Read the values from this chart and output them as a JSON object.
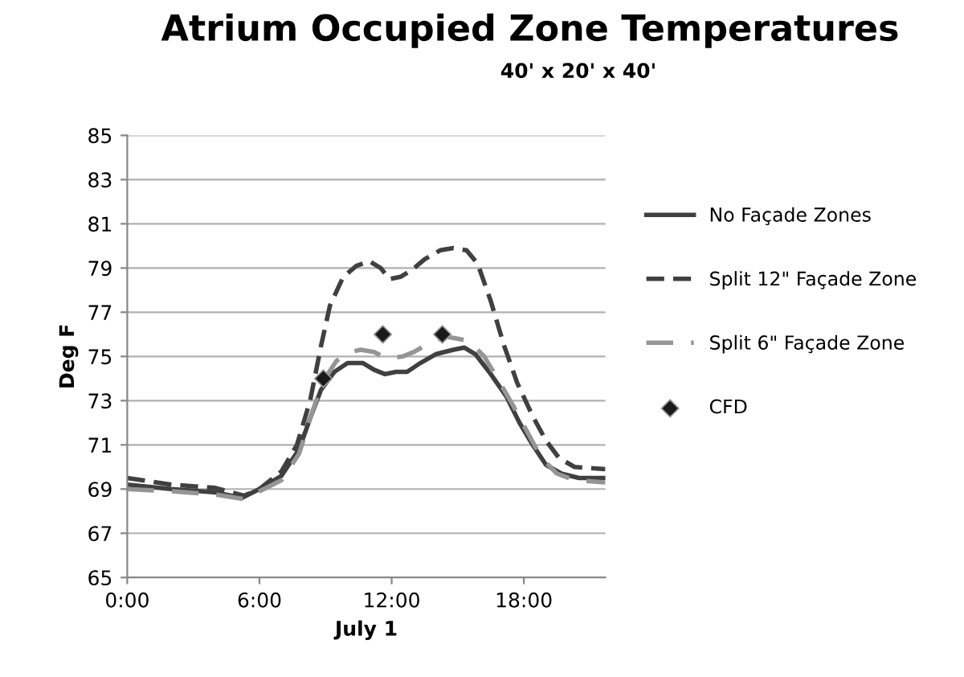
{
  "chart_data": {
    "type": "line",
    "title": "Atrium Occupied Zone Temperatures",
    "subtitle": "40' x 20' x 40'",
    "xlabel": "July 1",
    "ylabel": "Deg F",
    "xlim": [
      0,
      21.7
    ],
    "xticks": [
      {
        "value": 0,
        "label": "0:00"
      },
      {
        "value": 6,
        "label": "6:00"
      },
      {
        "value": 12,
        "label": "12:00"
      },
      {
        "value": 18,
        "label": "18:00"
      }
    ],
    "ylim": [
      65,
      85
    ],
    "yticks": [
      65,
      67,
      69,
      71,
      73,
      75,
      77,
      79,
      81,
      83,
      85
    ],
    "grid": "y",
    "legend": "right",
    "series": [
      {
        "name": "No Façade Zones",
        "color": "#404040",
        "line_style": "solid",
        "x": [
          0,
          2,
          4,
          5.2,
          6,
          7,
          7.8,
          8.3,
          8.8,
          9.4,
          10,
          10.7,
          11.2,
          11.7,
          12.2,
          12.7,
          13.3,
          14,
          14.8,
          15.3,
          15.8,
          16.5,
          17.2,
          17.8,
          18.4,
          19,
          19.7,
          20.5,
          21.7
        ],
        "values": [
          69.2,
          69.0,
          68.85,
          68.6,
          69.0,
          69.6,
          70.8,
          72.2,
          73.5,
          74.3,
          74.7,
          74.7,
          74.4,
          74.2,
          74.3,
          74.3,
          74.7,
          75.1,
          75.3,
          75.4,
          75.1,
          74.2,
          73.2,
          72.0,
          71.0,
          70.1,
          69.7,
          69.5,
          69.5
        ]
      },
      {
        "name": "Split 12\" Façade Zone",
        "color": "#404040",
        "line_style": "dashed",
        "x": [
          0,
          2,
          4,
          5.3,
          6,
          7,
          7.7,
          8.3,
          8.8,
          9.2,
          9.8,
          10.4,
          11,
          11.5,
          11.9,
          12.4,
          12.9,
          13.5,
          14.2,
          14.8,
          15.4,
          15.9,
          16.5,
          17.1,
          17.7,
          18.4,
          19,
          19.6,
          20.3,
          21.7
        ],
        "values": [
          69.5,
          69.2,
          69.05,
          68.7,
          69.0,
          69.8,
          71.0,
          73.0,
          75.5,
          77.3,
          78.6,
          79.1,
          79.3,
          79.0,
          78.5,
          78.6,
          78.9,
          79.4,
          79.8,
          79.9,
          79.8,
          79.2,
          77.5,
          75.5,
          73.8,
          72.3,
          71.2,
          70.4,
          70.0,
          69.9
        ]
      },
      {
        "name": "Split 6\" Façade Zone",
        "color": "#959595",
        "line_style": "dashed",
        "x": [
          0,
          2,
          4,
          5.3,
          6,
          7,
          7.8,
          8.4,
          8.9,
          9.5,
          10.1,
          10.6,
          11.2,
          11.8,
          12.5,
          13,
          13.7,
          14.4,
          15,
          15.5,
          16.2,
          16.8,
          17.5,
          18.2,
          18.8,
          19.5,
          20.3,
          21.7
        ],
        "values": [
          69.0,
          68.9,
          68.75,
          68.55,
          68.9,
          69.4,
          70.6,
          72.5,
          73.9,
          74.8,
          75.2,
          75.3,
          75.2,
          74.9,
          75.0,
          75.2,
          75.6,
          75.9,
          75.8,
          75.7,
          75.0,
          74.0,
          72.8,
          71.5,
          70.4,
          69.7,
          69.4,
          69.3
        ]
      },
      {
        "name": "CFD",
        "type": "scatter",
        "marker": "diamond",
        "color": "#1a1a1a",
        "x": [
          8.9,
          11.6,
          14.3
        ],
        "values": [
          74,
          76,
          76
        ]
      }
    ]
  }
}
